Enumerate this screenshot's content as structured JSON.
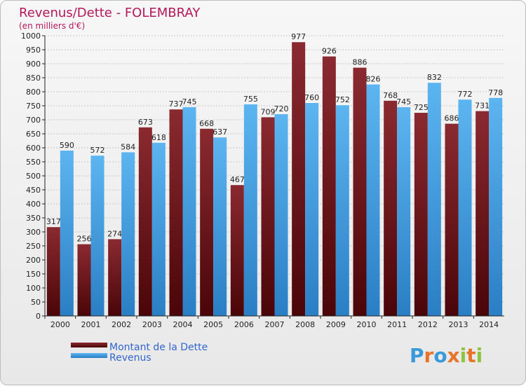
{
  "chart_data": {
    "type": "bar",
    "title": "Revenus/Dette - FOLEMBRAY",
    "subtitle": "(en milliers d'€)",
    "categories": [
      "2000",
      "2001",
      "2002",
      "2003",
      "2004",
      "2005",
      "2006",
      "2007",
      "2008",
      "2009",
      "2010",
      "2011",
      "2012",
      "2013",
      "2014"
    ],
    "series": [
      {
        "name": "Montant de la Dette",
        "color": "#6b1a1f",
        "values": [
          317,
          256,
          274,
          673,
          737,
          668,
          467,
          709,
          977,
          926,
          886,
          768,
          725,
          686,
          731
        ]
      },
      {
        "name": "Revenus",
        "color": "#3fa2e6",
        "values": [
          590,
          572,
          584,
          618,
          745,
          637,
          755,
          720,
          760,
          752,
          826,
          745,
          832,
          772,
          778
        ]
      }
    ],
    "ylim": [
      0,
      1000
    ],
    "ytick_step": 50,
    "yticks": [
      "0",
      "50",
      "100",
      "150",
      "200",
      "250",
      "300",
      "350",
      "400",
      "450",
      "500",
      "550",
      "600",
      "650",
      "700",
      "750",
      "800",
      "850",
      "900",
      "950",
      "1000"
    ],
    "grid": true,
    "legend_position": "bottom-left"
  },
  "logo": {
    "text": "Proxiti",
    "letters": [
      "P",
      "r",
      "o",
      "x",
      "i",
      "t",
      "i"
    ]
  },
  "colors": {
    "title": "#b3185a",
    "legend_text": "#3366cc",
    "axis": "#222222",
    "grid": "#c8c8c8"
  }
}
